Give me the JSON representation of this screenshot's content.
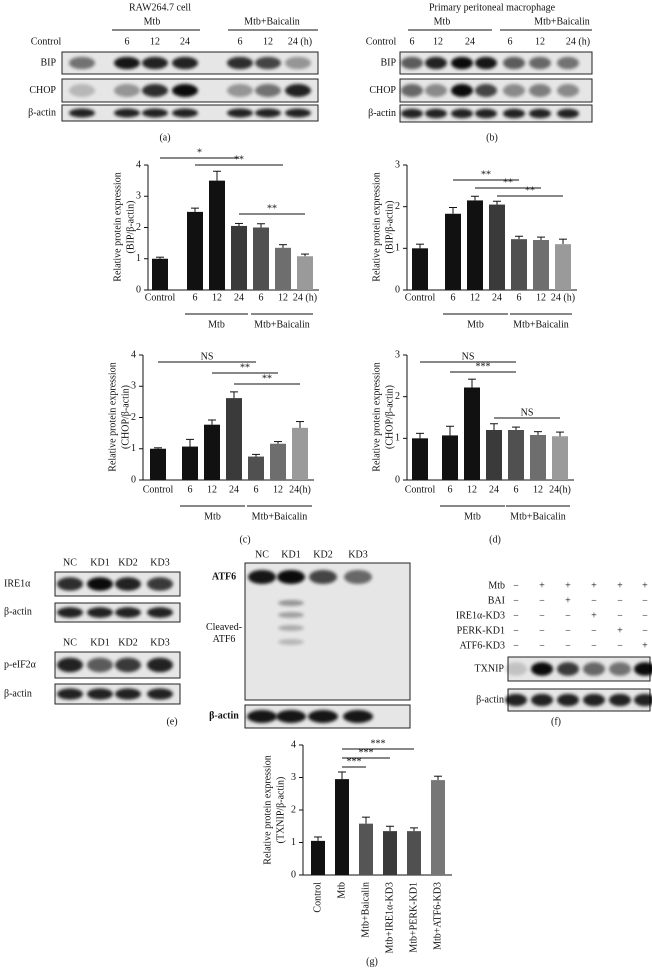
{
  "chart_data": [
    {
      "type": "bar",
      "ylabel": [
        "Relative protein expression",
        "(BIP/β-actin)"
      ],
      "categories": [
        "Control",
        "6",
        "12",
        "24",
        "6",
        "12",
        "24 (h)"
      ],
      "groups": [
        "Mtb",
        "Mtb+Baicalin"
      ],
      "values": [
        1.0,
        2.5,
        3.5,
        2.05,
        2.0,
        1.35,
        1.08
      ],
      "errors": [
        0.05,
        0.12,
        0.3,
        0.08,
        0.12,
        0.1,
        0.07
      ],
      "colors": [
        "#111111",
        "#111111",
        "#111111",
        "#3a3a3a",
        "#505050",
        "#6e6e6e",
        "#9a9a9a"
      ],
      "ylim": [
        0,
        4
      ],
      "yticks": [
        0,
        1,
        2,
        3,
        4
      ],
      "significance": [
        "*",
        "**",
        "**"
      ]
    },
    {
      "type": "bar",
      "ylabel": [
        "Relative protein expression",
        "(BIP/β-actin)"
      ],
      "categories": [
        "Control",
        "6",
        "12",
        "24",
        "6",
        "12",
        "24 (h)"
      ],
      "groups": [
        "Mtb",
        "Mtb+Baicalin"
      ],
      "values": [
        1.0,
        1.83,
        2.15,
        2.05,
        1.22,
        1.2,
        1.1
      ],
      "errors": [
        0.1,
        0.15,
        0.1,
        0.08,
        0.07,
        0.07,
        0.12
      ],
      "colors": [
        "#111111",
        "#111111",
        "#111111",
        "#3a3a3a",
        "#505050",
        "#6e6e6e",
        "#9a9a9a"
      ],
      "ylim": [
        0,
        3
      ],
      "yticks": [
        0,
        1,
        2,
        3
      ],
      "significance": [
        "**",
        "**",
        "**"
      ]
    },
    {
      "type": "bar",
      "ylabel": [
        "Relative protein expression",
        "(CHOP/β-actin)"
      ],
      "categories": [
        "Control",
        "6",
        "12",
        "24",
        "6",
        "12",
        "24(h)"
      ],
      "groups": [
        "Mtb",
        "Mtb+Baicalin"
      ],
      "values": [
        1.0,
        1.07,
        1.77,
        2.62,
        0.75,
        1.16,
        1.67
      ],
      "errors": [
        0.03,
        0.23,
        0.15,
        0.2,
        0.07,
        0.07,
        0.2
      ],
      "colors": [
        "#111111",
        "#111111",
        "#111111",
        "#3a3a3a",
        "#505050",
        "#6e6e6e",
        "#9a9a9a"
      ],
      "ylim": [
        0,
        4
      ],
      "yticks": [
        0,
        1,
        2,
        3,
        4
      ],
      "significance": [
        "NS",
        "**",
        "**"
      ],
      "caption": "(c)"
    },
    {
      "type": "bar",
      "ylabel": [
        "Relative protein expression",
        "(CHOP/β-actin)"
      ],
      "categories": [
        "Control",
        "6",
        "12",
        "24",
        "6",
        "12",
        "24(h)"
      ],
      "groups": [
        "Mtb",
        "Mtb+Baicalin"
      ],
      "values": [
        1.0,
        1.07,
        2.22,
        1.2,
        1.2,
        1.08,
        1.05
      ],
      "errors": [
        0.12,
        0.22,
        0.2,
        0.15,
        0.07,
        0.08,
        0.1
      ],
      "colors": [
        "#111111",
        "#111111",
        "#111111",
        "#3a3a3a",
        "#505050",
        "#6e6e6e",
        "#9a9a9a"
      ],
      "ylim": [
        0,
        3
      ],
      "yticks": [
        0,
        1,
        2,
        3
      ],
      "significance": [
        "NS",
        "***",
        "NS"
      ],
      "caption": "(d)"
    },
    {
      "type": "bar",
      "ylabel": [
        "Relative protein expression",
        "(TXNIP/β-actin)"
      ],
      "categories": [
        "Control",
        "Mtb",
        "Mtb+Baicalin",
        "Mtb+IRE1α-KD3",
        "Mtb+PERK-KD1",
        "Mtb+ATF6-KD3"
      ],
      "values": [
        1.05,
        2.95,
        1.58,
        1.35,
        1.35,
        2.92
      ],
      "errors": [
        0.12,
        0.22,
        0.2,
        0.15,
        0.1,
        0.12
      ],
      "colors": [
        "#111111",
        "#111111",
        "#555555",
        "#3a3a3a",
        "#505050",
        "#777777"
      ],
      "ylim": [
        0,
        4
      ],
      "yticks": [
        0,
        1,
        2,
        3,
        4
      ],
      "significance": [
        "***",
        "***",
        "***"
      ],
      "caption": "(g)"
    }
  ],
  "blot_panels": [
    {
      "title": "RAW264.7 cell",
      "groups": [
        "Mtb",
        "Mtb+Baicalin"
      ],
      "lanes": [
        "Control",
        "6",
        "12",
        "24",
        "6",
        "12",
        "24 (h)"
      ],
      "rows": [
        "BIP",
        "CHOP",
        "β-actin"
      ],
      "caption": "(a)"
    },
    {
      "title": "Primary peritoneal macrophage",
      "groups": [
        "Mtb",
        "Mtb+Baicalin"
      ],
      "lanes": [
        "Control",
        "6",
        "12",
        "24",
        "6",
        "12",
        "24 (h)"
      ],
      "rows": [
        "BIP",
        "CHOP",
        "β-actin"
      ],
      "caption": "(b)"
    },
    {
      "lanes": [
        "NC",
        "KD1",
        "KD2",
        "KD3"
      ],
      "rows": [
        "IRE1α",
        "β-actin"
      ]
    },
    {
      "lanes": [
        "NC",
        "KD1",
        "KD2",
        "KD3"
      ],
      "rows": [
        "p-eIF2α",
        "β-actin"
      ],
      "caption": "(e)"
    },
    {
      "lanes": [
        "NC",
        "KD1",
        "KD2",
        "KD3"
      ],
      "rows": [
        "ATF6",
        "Cleaved-ATF6",
        "β-actin"
      ]
    },
    {
      "conditions": [
        {
          "name": "Mtb",
          "marks": [
            "−",
            "+",
            "+",
            "+",
            "+",
            "+"
          ]
        },
        {
          "name": "BAI",
          "marks": [
            "−",
            "−",
            "+",
            "−",
            "−",
            "−"
          ]
        },
        {
          "name": "IRE1α-KD3",
          "marks": [
            "−",
            "−",
            "−",
            "+",
            "−",
            "−"
          ]
        },
        {
          "name": "PERK-KD1",
          "marks": [
            "−",
            "−",
            "−",
            "−",
            "+",
            "−"
          ]
        },
        {
          "name": "ATF6-KD3",
          "marks": [
            "−",
            "−",
            "−",
            "−",
            "−",
            "+"
          ]
        }
      ],
      "rows": [
        "TXNIP",
        "β-actin"
      ],
      "caption": "(f)"
    }
  ]
}
